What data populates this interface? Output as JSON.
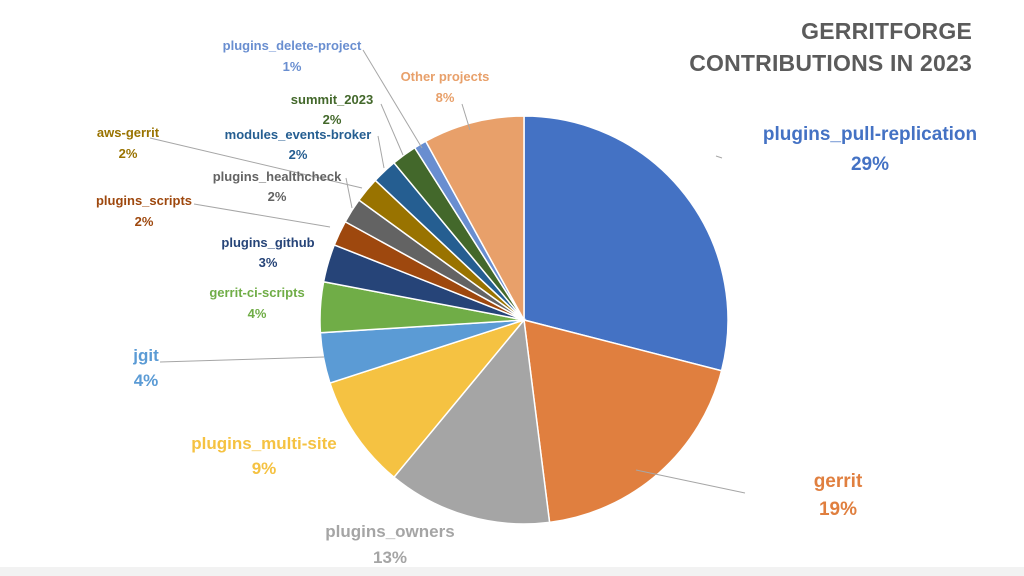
{
  "chart_data": {
    "type": "pie",
    "title": "GERRITFORGE CONTRIBUTIONS IN 2023",
    "title_lines": [
      "GERRITFORGE",
      "CONTRIBUTIONS IN 2023"
    ],
    "slices": [
      {
        "name": "plugins_pull-replication",
        "value": 29,
        "label": "29%",
        "color": "#4472C4"
      },
      {
        "name": "gerrit",
        "value": 19,
        "label": "19%",
        "color": "#E07F3F"
      },
      {
        "name": "plugins_owners",
        "value": 13,
        "label": "13%",
        "color": "#A5A5A5"
      },
      {
        "name": "plugins_multi-site",
        "value": 9,
        "label": "9%",
        "color": "#F5C242"
      },
      {
        "name": "jgit",
        "value": 4,
        "label": "4%",
        "color": "#5B9BD5"
      },
      {
        "name": "gerrit-ci-scripts",
        "value": 4,
        "label": "4%",
        "color": "#70AD47"
      },
      {
        "name": "plugins_github",
        "value": 3,
        "label": "3%",
        "color": "#264478"
      },
      {
        "name": "plugins_scripts",
        "value": 2,
        "label": "2%",
        "color": "#9E480E"
      },
      {
        "name": "plugins_healthcheck",
        "value": 2,
        "label": "2%",
        "color": "#636363"
      },
      {
        "name": "aws-gerrit",
        "value": 2,
        "label": "2%",
        "color": "#997300"
      },
      {
        "name": "modules_events-broker",
        "value": 2,
        "label": "2%",
        "color": "#255E91"
      },
      {
        "name": "summit_2023",
        "value": 2,
        "label": "2%",
        "color": "#43682B"
      },
      {
        "name": "plugins_delete-project",
        "value": 1,
        "label": "1%",
        "color": "#698ED0"
      },
      {
        "name": "Other projects",
        "value": 8,
        "label": "8%",
        "color": "#E8A06A"
      }
    ]
  }
}
